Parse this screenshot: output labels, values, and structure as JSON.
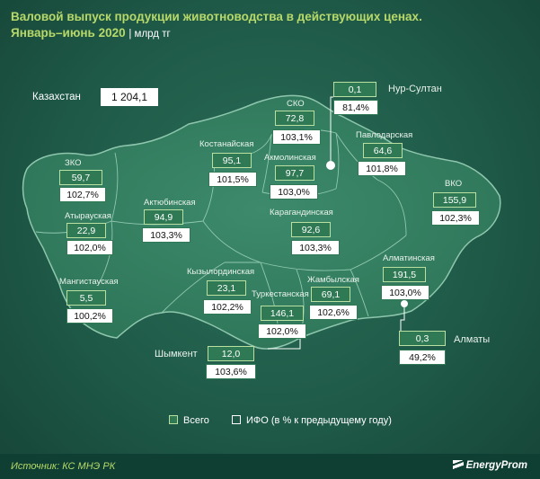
{
  "title_line1": "Валовой выпуск продукции животноводства в действующих ценах.",
  "title_line2": "Январь–июнь 2020",
  "unit": "| млрд тг",
  "kazakhstan": {
    "name": "Казахстан",
    "value": "1 204,1"
  },
  "regions": [
    {
      "id": "zko",
      "name": "ЗКО",
      "total": "59,7",
      "ifo": "102,7%"
    },
    {
      "id": "atyrau",
      "name": "Атырауская",
      "total": "22,9",
      "ifo": "102,0%"
    },
    {
      "id": "mangistau",
      "name": "Мангистауская",
      "total": "5,5",
      "ifo": "100,2%"
    },
    {
      "id": "aktobe",
      "name": "Актюбинская",
      "total": "94,9",
      "ifo": "103,3%"
    },
    {
      "id": "kostanay",
      "name": "Костанайская",
      "total": "95,1",
      "ifo": "101,5%"
    },
    {
      "id": "sko",
      "name": "СКО",
      "total": "72,8",
      "ifo": "103,1%"
    },
    {
      "id": "akmola",
      "name": "Акмолинская",
      "total": "97,7",
      "ifo": "103,0%"
    },
    {
      "id": "pavlodar",
      "name": "Павлодарская",
      "total": "64,6",
      "ifo": "101,8%"
    },
    {
      "id": "vko",
      "name": "ВКО",
      "total": "155,9",
      "ifo": "102,3%"
    },
    {
      "id": "karaganda",
      "name": "Карагандинская",
      "total": "92,6",
      "ifo": "103,3%"
    },
    {
      "id": "kyzylorda",
      "name": "Кызылординская",
      "total": "23,1",
      "ifo": "102,2%"
    },
    {
      "id": "turkestan",
      "name": "Туркестанская",
      "total": "146,1",
      "ifo": "102,0%"
    },
    {
      "id": "zhambyl",
      "name": "Жамбылская",
      "total": "69,1",
      "ifo": "102,6%"
    },
    {
      "id": "almaty_obl",
      "name": "Алматинская",
      "total": "191,5",
      "ifo": "103,0%"
    }
  ],
  "cities": [
    {
      "id": "nur_sultan",
      "name": "Нур-Султан",
      "total": "0,1",
      "ifo": "81,4%"
    },
    {
      "id": "almaty",
      "name": "Алматы",
      "total": "0,3",
      "ifo": "49,2%"
    },
    {
      "id": "shymkent",
      "name": "Шымкент",
      "total": "12,0",
      "ifo": "103,6%"
    }
  ],
  "legend": {
    "total": "Всего",
    "ifo": "ИФО (в % к предыдущему году)"
  },
  "source": "Источник: КС МНЭ РК",
  "brand": "EnergyProm",
  "colors": {
    "background": "#1f5a48",
    "title": "#b7d96a",
    "total_box": "#2f7a55",
    "ifo_box": "#ffffff"
  }
}
